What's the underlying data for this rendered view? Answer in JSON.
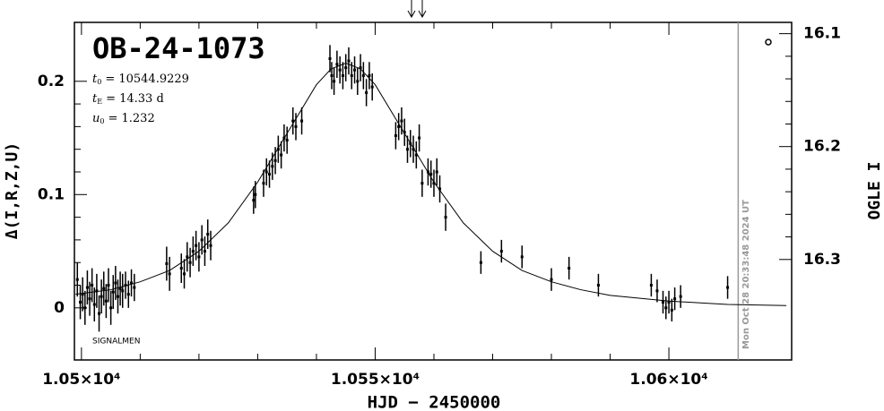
{
  "chart_data": {
    "type": "scatter",
    "title": "OB-24-1073",
    "params": [
      {
        "symbol": "t",
        "sub": "0",
        "text": "= 10544.9229"
      },
      {
        "symbol": "t",
        "sub": "E",
        "text": "= 14.33 d"
      },
      {
        "symbol": "u",
        "sub": "0",
        "text": "= 1.232"
      }
    ],
    "note": "SIGNALMEN",
    "timestamp": "Mon Oct 28 20:33:48 2024 UT",
    "xlabel": "HJD − 2450000",
    "ylabel": "Δ(I,R,Z,U)",
    "y2label": "OGLE I",
    "xlim": [
      10498.8,
      10620.9
    ],
    "ylim": [
      -0.046,
      0.252
    ],
    "y2lim": [
      16.389,
      16.09
    ],
    "xticks": [
      {
        "value": 10500,
        "label": "1.05×10⁴"
      },
      {
        "value": 10550,
        "label": "1.055×10⁴"
      },
      {
        "value": 10600,
        "label": "1.06×10⁴"
      }
    ],
    "yticks": [
      0,
      0.1,
      0.2
    ],
    "y2ticks": [
      16.1,
      16.2,
      16.3
    ],
    "marker_x": 10611.8,
    "series": [
      {
        "color": "#000000",
        "x": [
          10499.3,
          10499.8,
          10500.2,
          10500.6,
          10501.0,
          10501.4,
          10501.8,
          10502.2,
          10502.6,
          10503.0,
          10503.4,
          10503.8,
          10504.2,
          10504.6,
          10505.0,
          10505.4,
          10505.8,
          10506.2,
          10506.6,
          10507.0,
          10507.5,
          10508.0,
          10508.5,
          10509.0,
          10514.5,
          10515,
          10517,
          10517.5,
          10518,
          10518.5,
          10519,
          10519.5,
          10520,
          10520.5,
          10521,
          10521.5,
          10522,
          10529.3,
          10529.6,
          10531,
          10531.5,
          10532,
          10532.5,
          10533,
          10533.5,
          10534,
          10534.5,
          10535,
          10536,
          10536.5,
          10537.5,
          10542.3,
          10542.6,
          10543,
          10543.5,
          10544,
          10544.5,
          10545,
          10545.5,
          10546,
          10546.5,
          10547,
          10547.5,
          10548,
          10548.5,
          10549,
          10549.5,
          10553.5,
          10554,
          10554.5,
          10555,
          10555.5,
          10556,
          10556.5,
          10557,
          10557.5,
          10558,
          10559,
          10559.5,
          10560,
          10560.5,
          10561,
          10562,
          10568,
          10571.5,
          10575,
          10580,
          10583,
          10588,
          10597,
          10598,
          10599,
          10599.5,
          10600,
          10600.5,
          10601,
          10602,
          10610
        ],
        "values": [
          0.025,
          0.005,
          0.012,
          0.0,
          0.018,
          0.008,
          0.02,
          0.003,
          0.015,
          -0.005,
          0.01,
          0.017,
          0.006,
          0.02,
          0.0,
          0.014,
          0.022,
          0.01,
          0.017,
          0.015,
          0.02,
          0.012,
          0.022,
          0.018,
          0.039,
          0.03,
          0.035,
          0.03,
          0.045,
          0.04,
          0.05,
          0.055,
          0.045,
          0.06,
          0.05,
          0.065,
          0.055,
          0.095,
          0.1,
          0.11,
          0.12,
          0.118,
          0.125,
          0.13,
          0.14,
          0.135,
          0.15,
          0.148,
          0.165,
          0.16,
          0.165,
          0.22,
          0.205,
          0.2,
          0.215,
          0.21,
          0.205,
          0.212,
          0.218,
          0.205,
          0.21,
          0.2,
          0.212,
          0.205,
          0.19,
          0.205,
          0.195,
          0.152,
          0.16,
          0.165,
          0.155,
          0.14,
          0.145,
          0.14,
          0.135,
          0.15,
          0.11,
          0.12,
          0.118,
          0.11,
          0.12,
          0.105,
          0.08,
          0.04,
          0.05,
          0.045,
          0.025,
          0.035,
          0.02,
          0.02,
          0.015,
          0.005,
          0.0,
          0.005,
          -0.002,
          0.008,
          0.01,
          0.018
        ],
        "errors": [
          0.015,
          0.015,
          0.015,
          0.015,
          0.015,
          0.015,
          0.015,
          0.015,
          0.015,
          0.016,
          0.015,
          0.015,
          0.015,
          0.015,
          0.015,
          0.015,
          0.015,
          0.015,
          0.015,
          0.015,
          0.012,
          0.012,
          0.012,
          0.012,
          0.015,
          0.015,
          0.013,
          0.013,
          0.013,
          0.013,
          0.013,
          0.013,
          0.013,
          0.013,
          0.013,
          0.013,
          0.013,
          0.012,
          0.012,
          0.012,
          0.012,
          0.012,
          0.012,
          0.012,
          0.012,
          0.012,
          0.012,
          0.012,
          0.012,
          0.012,
          0.012,
          0.012,
          0.012,
          0.012,
          0.012,
          0.012,
          0.012,
          0.012,
          0.012,
          0.012,
          0.012,
          0.012,
          0.012,
          0.012,
          0.012,
          0.012,
          0.012,
          0.012,
          0.012,
          0.012,
          0.012,
          0.012,
          0.012,
          0.012,
          0.012,
          0.012,
          0.012,
          0.012,
          0.012,
          0.012,
          0.012,
          0.012,
          0.012,
          0.01,
          0.01,
          0.01,
          0.01,
          0.01,
          0.01,
          0.01,
          0.01,
          0.01,
          0.01,
          0.01,
          0.01,
          0.01,
          0.01,
          0.01
        ]
      }
    ],
    "model": {
      "color": "#000000",
      "x": [
        10499,
        10505,
        10510,
        10515,
        10520,
        10525,
        10530,
        10535,
        10540,
        10542.5,
        10545,
        10547.5,
        10550,
        10555,
        10560,
        10565,
        10570,
        10575,
        10580,
        10585,
        10590,
        10600,
        10610,
        10620
      ],
      "values": [
        0.012,
        0.016,
        0.023,
        0.033,
        0.05,
        0.075,
        0.111,
        0.154,
        0.197,
        0.211,
        0.216,
        0.211,
        0.197,
        0.154,
        0.111,
        0.075,
        0.05,
        0.033,
        0.023,
        0.016,
        0.011,
        0.006,
        0.003,
        0.002
      ]
    }
  }
}
